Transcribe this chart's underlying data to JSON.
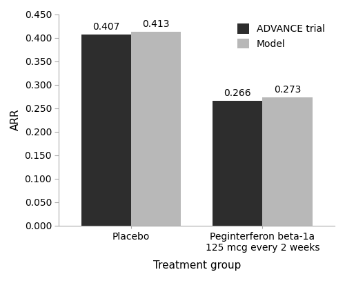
{
  "categories": [
    "Placebo",
    "Peginterferon beta-1a\n125 mcg every 2 weeks"
  ],
  "advance_values": [
    0.407,
    0.266
  ],
  "model_values": [
    0.413,
    0.273
  ],
  "advance_color": "#2d2d2d",
  "model_color": "#b8b8b8",
  "ylabel": "ARR",
  "xlabel": "Treatment group",
  "ylim": [
    0.0,
    0.45
  ],
  "yticks": [
    0.0,
    0.05,
    0.1,
    0.15,
    0.2,
    0.25,
    0.3,
    0.35,
    0.4,
    0.45
  ],
  "legend_labels": [
    "ADVANCE trial",
    "Model"
  ],
  "bar_width": 0.38,
  "label_fontsize": 11,
  "tick_fontsize": 10,
  "value_fontsize": 10,
  "spine_color": "#aaaaaa"
}
